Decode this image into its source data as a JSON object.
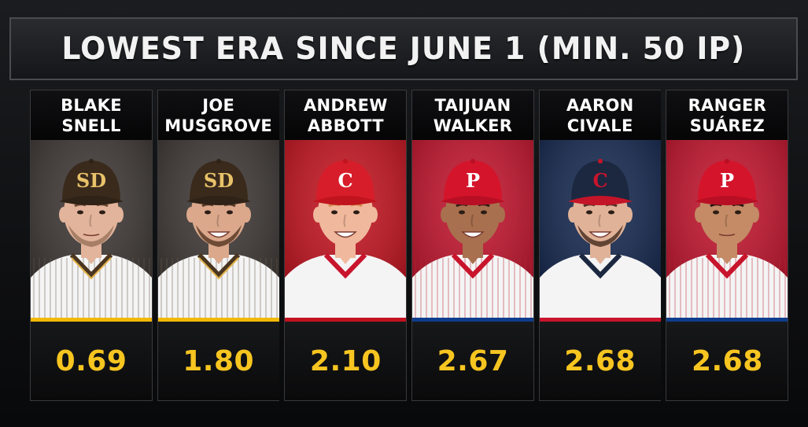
{
  "title": "LOWEST ERA SINCE JUNE 1 (MIN. 50 IP)",
  "chart_data": {
    "type": "table",
    "title": "LOWEST ERA SINCE JUNE 1 (MIN. 50 IP)",
    "categories": [
      "BLAKE SNELL",
      "JOE MUSGROVE",
      "ANDREW ABBOTT",
      "TAIJUAN WALKER",
      "AARON CIVALE",
      "RANGER SUÁREZ"
    ],
    "values": [
      0.69,
      1.8,
      2.1,
      2.67,
      2.68,
      2.68
    ]
  },
  "players": [
    {
      "first": "BLAKE",
      "last": "SNELL",
      "era": "0.69",
      "team_logo": "SD",
      "bg": "#3b3532",
      "accent": "#f2b807",
      "cap": "#3a2a1c",
      "brim": "#2f2216",
      "logo_color": "#e8c26a",
      "jersey": "pinstripe-brown",
      "skin": "#e2b49b",
      "hair": "#6b4a34"
    },
    {
      "first": "JOE",
      "last": "MUSGROVE",
      "era": "1.80",
      "team_logo": "SD",
      "bg": "#3b3532",
      "accent": "#f2b807",
      "cap": "#3a2a1c",
      "brim": "#2f2216",
      "logo_color": "#e8c26a",
      "jersey": "pinstripe-brown",
      "skin": "#dba88c",
      "hair": "#5a3b26"
    },
    {
      "first": "ANDREW",
      "last": "ABBOTT",
      "era": "2.10",
      "team_logo": "C",
      "bg": "#c2121e",
      "accent": "#c2121e",
      "cap": "#d71d2a",
      "brim": "#c0141f",
      "logo_color": "#ffffff",
      "jersey": "white-red",
      "skin": "#f0b89c",
      "hair": "#d38a4c"
    },
    {
      "first": "TAIJUAN",
      "last": "WALKER",
      "era": "2.67",
      "team_logo": "P",
      "bg": "#c1122b",
      "accent": "#0e3d8c",
      "cap": "#d4142a",
      "brim": "#b80f24",
      "logo_color": "#ffffff",
      "jersey": "pinstripe-red",
      "skin": "#a8704e",
      "hair": "#2a1d16"
    },
    {
      "first": "AARON",
      "last": "CIVALE",
      "era": "2.68",
      "team_logo": "C",
      "bg": "#13264d",
      "accent": "#c8142c",
      "cap": "#1c2840",
      "brim": "#c41428",
      "logo_color": "#c8142c",
      "jersey": "white-navy",
      "skin": "#e0b298",
      "hair": "#4a3022"
    },
    {
      "first": "RANGER",
      "last": "SUÁREZ",
      "era": "2.68",
      "team_logo": "P",
      "bg": "#c1122b",
      "accent": "#0e3d8c",
      "cap": "#d4142a",
      "brim": "#b80f24",
      "logo_color": "#ffffff",
      "jersey": "pinstripe-red",
      "skin": "#c48b66",
      "hair": "#1e1612"
    }
  ]
}
